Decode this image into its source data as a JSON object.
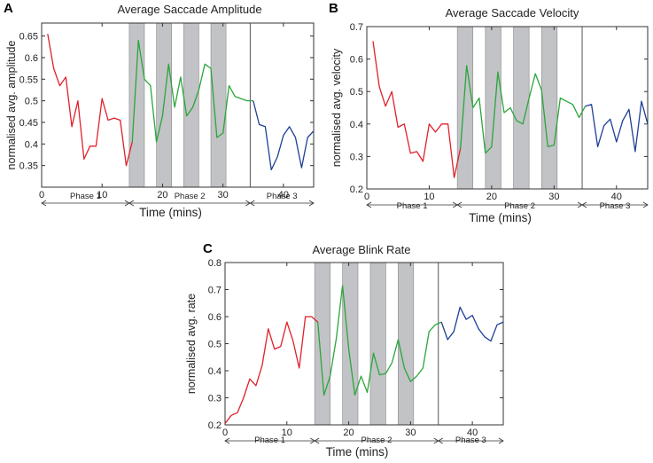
{
  "colors": {
    "phase1": "#e0202a",
    "phase2": "#2aa63a",
    "phase3": "#1f3f96",
    "shade": "#c2c3c6"
  },
  "chart_data": [
    {
      "type": "line",
      "panel": "A",
      "title": "Average Saccade Amplitude",
      "ylabel": "normalised avg. amplitude",
      "xlabel": "Time (mins)",
      "xlim": [
        0,
        45
      ],
      "ylim": [
        0.3,
        0.68
      ],
      "xticks": [
        0,
        10,
        20,
        30,
        40
      ],
      "yticks": [
        0.35,
        0.4,
        0.45,
        0.5,
        0.55,
        0.6,
        0.65
      ],
      "yticklabels": [
        "0.35",
        "0.4",
        "0.45",
        "0.5",
        "0.55",
        "0.6",
        "0.65"
      ],
      "shaded": [
        [
          14.5,
          17
        ],
        [
          19,
          21.5
        ],
        [
          23.5,
          26
        ],
        [
          28,
          30.5
        ]
      ],
      "boundary": 34.5,
      "phases": [
        {
          "label": "Phase 1",
          "range": [
            0,
            14.5
          ]
        },
        {
          "label": "Phase 2",
          "range": [
            14.5,
            34.5
          ]
        },
        {
          "label": "Phase 3",
          "range": [
            34.5,
            45
          ]
        }
      ],
      "series": [
        {
          "name": "Phase 1",
          "color": "phase1",
          "x": [
            1,
            2,
            3,
            4,
            5,
            6,
            7,
            8,
            9,
            10,
            11,
            12,
            13,
            14,
            15
          ],
          "values": [
            0.655,
            0.575,
            0.535,
            0.555,
            0.44,
            0.5,
            0.365,
            0.395,
            0.395,
            0.505,
            0.455,
            0.46,
            0.455,
            0.35,
            0.405
          ]
        },
        {
          "name": "Phase 2",
          "color": "phase2",
          "x": [
            15,
            16,
            17,
            18,
            19,
            20,
            21,
            22,
            23,
            24,
            25,
            26,
            27,
            28,
            29,
            30,
            31,
            32,
            33,
            34,
            35
          ],
          "values": [
            0.405,
            0.64,
            0.55,
            0.535,
            0.405,
            0.465,
            0.585,
            0.485,
            0.555,
            0.465,
            0.485,
            0.525,
            0.585,
            0.575,
            0.415,
            0.425,
            0.535,
            0.51,
            0.505,
            0.5,
            0.5
          ]
        },
        {
          "name": "Phase 3",
          "color": "phase3",
          "x": [
            35,
            36,
            37,
            38,
            39,
            40,
            41,
            42,
            43,
            44,
            45
          ],
          "values": [
            0.5,
            0.445,
            0.44,
            0.34,
            0.37,
            0.42,
            0.44,
            0.415,
            0.345,
            0.415,
            0.43
          ]
        }
      ]
    },
    {
      "type": "line",
      "panel": "B",
      "title": "Average Saccade Velocity",
      "ylabel": "normalised avg. velocity",
      "xlabel": "Time (mins)",
      "xlim": [
        0,
        45
      ],
      "ylim": [
        0.2,
        0.7
      ],
      "xticks": [
        0,
        10,
        20,
        30,
        40
      ],
      "yticks": [
        0.2,
        0.3,
        0.4,
        0.5,
        0.6,
        0.7
      ],
      "yticklabels": [
        "0.2",
        "0.3",
        "0.4",
        "0.5",
        "0.6",
        "0.7"
      ],
      "shaded": [
        [
          14.5,
          17
        ],
        [
          19,
          21.5
        ],
        [
          23.5,
          26
        ],
        [
          28,
          30.5
        ]
      ],
      "boundary": 34.5,
      "phases": [
        {
          "label": "Phase 1",
          "range": [
            0,
            14.5
          ]
        },
        {
          "label": "Phase 2",
          "range": [
            14.5,
            34.5
          ]
        },
        {
          "label": "Phase 3",
          "range": [
            34.5,
            45
          ]
        }
      ],
      "series": [
        {
          "name": "Phase 1",
          "color": "phase1",
          "x": [
            1,
            2,
            3,
            4,
            5,
            6,
            7,
            8,
            9,
            10,
            11,
            12,
            13,
            14,
            15
          ],
          "values": [
            0.655,
            0.515,
            0.455,
            0.5,
            0.39,
            0.4,
            0.31,
            0.315,
            0.285,
            0.4,
            0.375,
            0.4,
            0.4,
            0.235,
            0.325
          ]
        },
        {
          "name": "Phase 2",
          "color": "phase2",
          "x": [
            15,
            16,
            17,
            18,
            19,
            20,
            21,
            22,
            23,
            24,
            25,
            26,
            27,
            28,
            29,
            30,
            31,
            32,
            33,
            34,
            35
          ],
          "values": [
            0.325,
            0.58,
            0.45,
            0.48,
            0.31,
            0.33,
            0.56,
            0.435,
            0.45,
            0.41,
            0.4,
            0.48,
            0.555,
            0.505,
            0.33,
            0.335,
            0.48,
            0.47,
            0.46,
            0.42,
            0.455
          ]
        },
        {
          "name": "Phase 3",
          "color": "phase3",
          "x": [
            35,
            36,
            37,
            38,
            39,
            40,
            41,
            42,
            43,
            44,
            45
          ],
          "values": [
            0.455,
            0.46,
            0.33,
            0.395,
            0.415,
            0.345,
            0.41,
            0.445,
            0.315,
            0.47,
            0.4
          ]
        }
      ]
    },
    {
      "type": "line",
      "panel": "C",
      "title": "Average Blink Rate",
      "ylabel": "normalised avg. rate",
      "xlabel": "Time (mins)",
      "xlim": [
        0,
        45
      ],
      "ylim": [
        0.2,
        0.8
      ],
      "xticks": [
        0,
        10,
        20,
        30,
        40
      ],
      "yticks": [
        0.2,
        0.3,
        0.4,
        0.5,
        0.6,
        0.7,
        0.8
      ],
      "yticklabels": [
        "0.2",
        "0.3",
        "0.4",
        "0.5",
        "0.6",
        "0.7",
        "0.8"
      ],
      "shaded": [
        [
          14.5,
          17
        ],
        [
          19,
          21.5
        ],
        [
          23.5,
          26
        ],
        [
          28,
          30.5
        ]
      ],
      "boundary": 34.5,
      "phases": [
        {
          "label": "Phase 1",
          "range": [
            0,
            14.5
          ]
        },
        {
          "label": "Phase 2",
          "range": [
            14.5,
            34.5
          ]
        },
        {
          "label": "Phase 3",
          "range": [
            34.5,
            45
          ]
        }
      ],
      "series": [
        {
          "name": "Phase 1",
          "color": "phase1",
          "x": [
            0,
            1,
            2,
            3,
            4,
            5,
            6,
            7,
            8,
            9,
            10,
            11,
            12,
            13,
            14,
            15
          ],
          "values": [
            0.205,
            0.235,
            0.245,
            0.3,
            0.37,
            0.345,
            0.42,
            0.555,
            0.48,
            0.49,
            0.58,
            0.51,
            0.41,
            0.6,
            0.6,
            0.58
          ]
        },
        {
          "name": "Phase 2",
          "color": "phase2",
          "x": [
            15,
            16,
            17,
            18,
            19,
            20,
            21,
            22,
            23,
            24,
            25,
            26,
            27,
            28,
            29,
            30,
            31,
            32,
            33,
            34,
            35
          ],
          "values": [
            0.58,
            0.31,
            0.38,
            0.52,
            0.715,
            0.48,
            0.31,
            0.38,
            0.32,
            0.465,
            0.385,
            0.39,
            0.43,
            0.515,
            0.41,
            0.36,
            0.38,
            0.41,
            0.545,
            0.57,
            0.58
          ]
        },
        {
          "name": "Phase 3",
          "color": "phase3",
          "x": [
            35,
            36,
            37,
            38,
            39,
            40,
            41,
            42,
            43,
            44,
            45
          ],
          "values": [
            0.58,
            0.515,
            0.545,
            0.635,
            0.59,
            0.605,
            0.555,
            0.525,
            0.51,
            0.57,
            0.58
          ]
        }
      ]
    }
  ]
}
